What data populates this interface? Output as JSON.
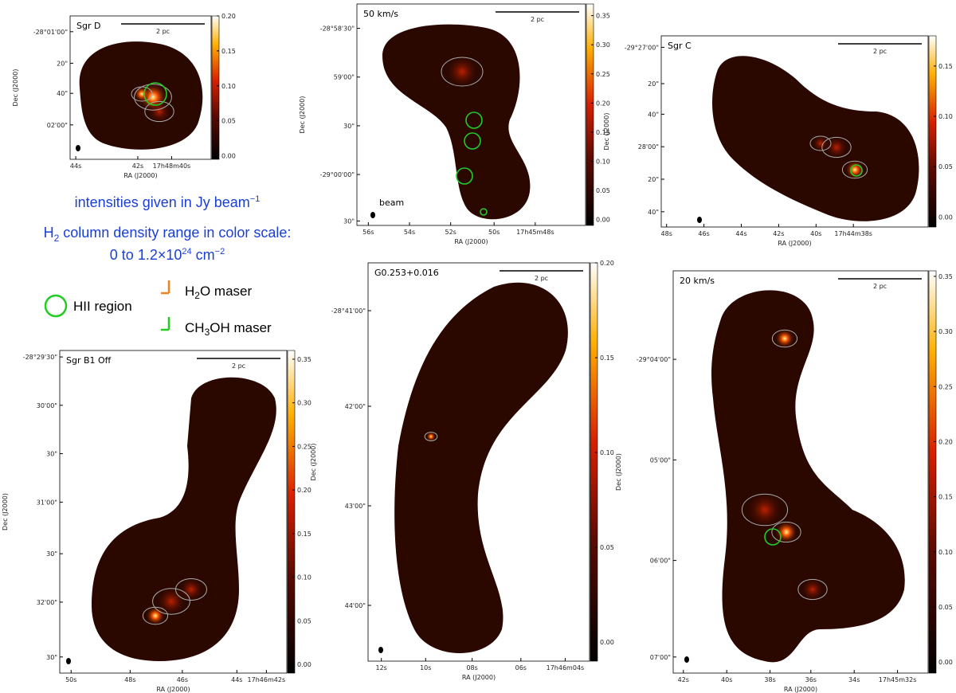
{
  "chart_data": [
    {
      "type": "map",
      "title": "Sgr D",
      "xlabel": "RA (J2000)",
      "ylabel": "Dec (J2000)",
      "scale_bar": "2 pc",
      "xtick_labels": [
        "44s",
        "42s",
        "17h48m40s"
      ],
      "ytick_labels": [
        "-28°01'00\"",
        "20\"",
        "40\"",
        "02'00\""
      ],
      "clim": [
        -0.005,
        0.2
      ],
      "cticks": [
        {
          "value": 0,
          "label": "0.00"
        },
        {
          "value": 0.05,
          "label": "0.05"
        },
        {
          "value": 0.1,
          "label": "0.10"
        },
        {
          "value": 0.15,
          "label": "0.15"
        },
        {
          "value": 0.2,
          "label": "0.20"
        }
      ]
    },
    {
      "type": "map",
      "title": "50 km/s",
      "xlabel": "RA (J2000)",
      "ylabel": "Dec (J2000)",
      "scale_bar": "2 pc",
      "annotation": "beam",
      "xtick_labels": [
        "56s",
        "54s",
        "52s",
        "50s",
        "17h45m48s"
      ],
      "ytick_labels": [
        "-28°58'30\"",
        "59'00\"",
        "30\"",
        "-29°00'00\"",
        "30\""
      ],
      "clim": [
        -0.01,
        0.37
      ],
      "cticks": [
        {
          "value": 0,
          "label": "0.00"
        },
        {
          "value": 0.05,
          "label": "0.05"
        },
        {
          "value": 0.1,
          "label": "0.10"
        },
        {
          "value": 0.15,
          "label": "0.15"
        },
        {
          "value": 0.2,
          "label": "0.20"
        },
        {
          "value": 0.25,
          "label": "0.25"
        },
        {
          "value": 0.3,
          "label": "0.30"
        },
        {
          "value": 0.35,
          "label": "0.35"
        }
      ]
    },
    {
      "type": "map",
      "title": "Sgr C",
      "xlabel": "RA (J2000)",
      "ylabel": "Dec (J2000)",
      "scale_bar": "2 pc",
      "xtick_labels": [
        "48s",
        "46s",
        "44s",
        "42s",
        "40s",
        "17h44m38s"
      ],
      "ytick_labels": [
        "-29°27'00\"",
        "20\"",
        "40\"",
        "28'00\"",
        "20\"",
        "40\""
      ],
      "clim": [
        -0.01,
        0.18
      ],
      "cticks": [
        {
          "value": 0,
          "label": "0.00"
        },
        {
          "value": 0.05,
          "label": "0.05"
        },
        {
          "value": 0.1,
          "label": "0.10"
        },
        {
          "value": 0.15,
          "label": "0.15"
        }
      ]
    },
    {
      "type": "map",
      "title": "Sgr B1 Off",
      "xlabel": "RA (J2000)",
      "ylabel": "Dec (J2000)",
      "scale_bar": "2 pc",
      "xtick_labels": [
        "50s",
        "48s",
        "46s",
        "44s",
        "17h46m42s"
      ],
      "ytick_labels": [
        "-28°29'30\"",
        "30'00\"",
        "30\"",
        "31'00\"",
        "30\"",
        "32'00\"",
        "30\""
      ],
      "clim": [
        -0.01,
        0.36
      ],
      "cticks": [
        {
          "value": 0,
          "label": "0.00"
        },
        {
          "value": 0.05,
          "label": "0.05"
        },
        {
          "value": 0.1,
          "label": "0.10"
        },
        {
          "value": 0.15,
          "label": "0.15"
        },
        {
          "value": 0.2,
          "label": "0.20"
        },
        {
          "value": 0.25,
          "label": "0.25"
        },
        {
          "value": 0.3,
          "label": "0.30"
        },
        {
          "value": 0.35,
          "label": "0.35"
        }
      ]
    },
    {
      "type": "map",
      "title": "G0.253+0.016",
      "xlabel": "RA (J2000)",
      "ylabel": "Dec (J2000)",
      "scale_bar": "2 pc",
      "xtick_labels": [
        "12s",
        "10s",
        "08s",
        "06s",
        "17h46m04s"
      ],
      "ytick_labels": [
        "-28°41'00\"",
        "42'00\"",
        "43'00\"",
        "44'00\""
      ],
      "clim": [
        -0.01,
        0.2
      ],
      "cticks": [
        {
          "value": 0,
          "label": "0.00"
        },
        {
          "value": 0.05,
          "label": "0.05"
        },
        {
          "value": 0.1,
          "label": "0.10"
        },
        {
          "value": 0.15,
          "label": "0.15"
        },
        {
          "value": 0.2,
          "label": "0.20"
        }
      ]
    },
    {
      "type": "map",
      "title": "20 km/s",
      "xlabel": "RA (J2000)",
      "ylabel": "Dec (J2000)",
      "scale_bar": "2 pc",
      "xtick_labels": [
        "42s",
        "40s",
        "38s",
        "36s",
        "34s",
        "17h45m32s"
      ],
      "ytick_labels": [
        "-29°04'00\"",
        "05'00\"",
        "06'00\"",
        "07'00\""
      ],
      "clim": [
        -0.01,
        0.355
      ],
      "cticks": [
        {
          "value": 0,
          "label": "0.00"
        },
        {
          "value": 0.05,
          "label": "0.05"
        },
        {
          "value": 0.1,
          "label": "0.10"
        },
        {
          "value": 0.15,
          "label": "0.15"
        },
        {
          "value": 0.2,
          "label": "0.20"
        },
        {
          "value": 0.25,
          "label": "0.25"
        },
        {
          "value": 0.3,
          "label": "0.30"
        },
        {
          "value": 0.35,
          "label": "0.35"
        }
      ]
    }
  ],
  "notes": {
    "line1": {
      "text": "intensities given in Jy beam",
      "sup": "−1"
    },
    "line2": {
      "a": "H",
      "sub": "2",
      "b": " column density range in color scale:"
    },
    "line3": {
      "a": "0 to 1.2×10",
      "sup": "24",
      "b": " cm",
      "sup2": "−2"
    }
  },
  "legend": {
    "hii": "HII region",
    "h2o": {
      "a": "H",
      "sub": "2",
      "b": "O maser"
    },
    "ch3oh": {
      "a": "CH",
      "sub": "3",
      "b": "OH maser"
    }
  }
}
